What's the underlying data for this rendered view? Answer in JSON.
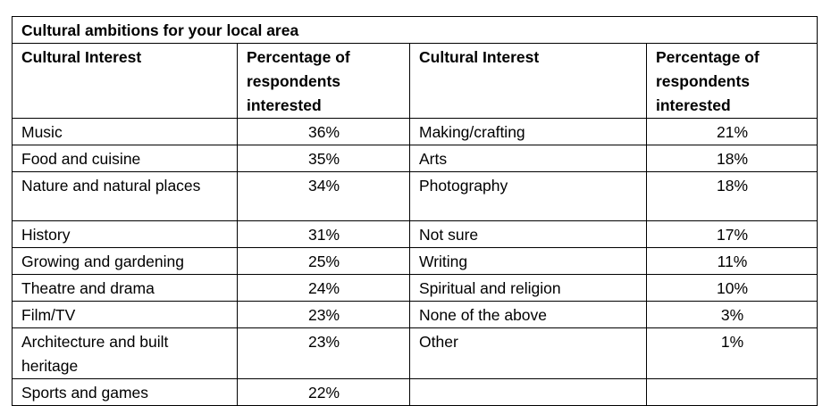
{
  "table": {
    "title": "Cultural ambitions for your local area",
    "headers": {
      "interest": "Cultural Interest",
      "percentage": "Percentage of respondents interested"
    },
    "rows": [
      {
        "left_interest": "Music",
        "left_pct": "36%",
        "right_interest": "Making/crafting",
        "right_pct": "21%"
      },
      {
        "left_interest": "Food and cuisine",
        "left_pct": "35%",
        "right_interest": "Arts",
        "right_pct": "18%"
      },
      {
        "left_interest": "Nature and natural places",
        "left_pct": "34%",
        "right_interest": "Photography",
        "right_pct": "18%"
      },
      {
        "left_interest": "History",
        "left_pct": "31%",
        "right_interest": "Not sure",
        "right_pct": "17%"
      },
      {
        "left_interest": "Growing and gardening",
        "left_pct": "25%",
        "right_interest": "Writing",
        "right_pct": "11%"
      },
      {
        "left_interest": "Theatre and drama",
        "left_pct": "24%",
        "right_interest": "Spiritual and religion",
        "right_pct": "10%"
      },
      {
        "left_interest": "Film/TV",
        "left_pct": "23%",
        "right_interest": "None of the above",
        "right_pct": "3%"
      },
      {
        "left_interest": "Architecture and built heritage",
        "left_pct": "23%",
        "right_interest": "Other",
        "right_pct": "1%"
      },
      {
        "left_interest": "Sports and games",
        "left_pct": "22%",
        "right_interest": "",
        "right_pct": ""
      }
    ]
  }
}
